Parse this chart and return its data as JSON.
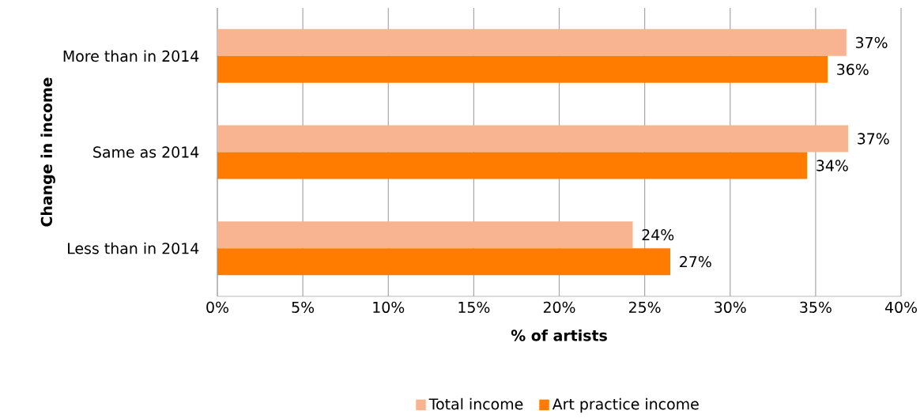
{
  "chart_data": {
    "type": "bar",
    "orientation": "horizontal",
    "xlabel": "% of artists",
    "ylabel": "Change in income",
    "categories": [
      "More than in 2014",
      "Same as 2014",
      "Less than in 2014"
    ],
    "series": [
      {
        "name": "Total income",
        "color": "#f8b490",
        "values": [
          36.8,
          36.9,
          24.3
        ],
        "value_labels": [
          "37%",
          "37%",
          "24%"
        ]
      },
      {
        "name": "Art practice income",
        "color": "#ff7c00",
        "values": [
          35.7,
          34.5,
          26.5
        ],
        "value_labels": [
          "36%",
          "34%",
          "27%"
        ]
      }
    ],
    "xlim": [
      0,
      40
    ],
    "xticks": [
      {
        "value": 0,
        "label": "0%"
      },
      {
        "value": 5,
        "label": "5%"
      },
      {
        "value": 10,
        "label": "10%"
      },
      {
        "value": 15,
        "label": "15%"
      },
      {
        "value": 20,
        "label": "20%"
      },
      {
        "value": 25,
        "label": "25%"
      },
      {
        "value": 30,
        "label": "30%"
      },
      {
        "value": 35,
        "label": "35%"
      },
      {
        "value": 40,
        "label": "40%"
      }
    ],
    "grid": "x",
    "legend": "bottom"
  }
}
